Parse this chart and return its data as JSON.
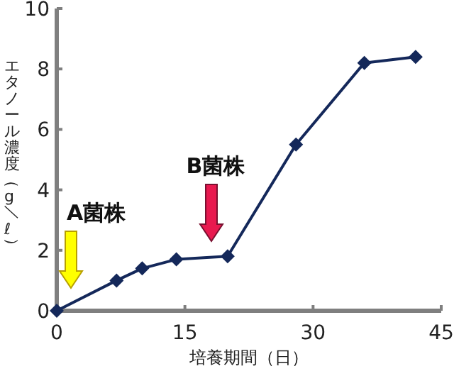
{
  "chart_data": {
    "type": "line",
    "xlabel": "培養期間（日）",
    "ylabel": "エタノール濃度（g／ℓ）",
    "x": [
      0,
      7,
      10,
      14,
      20,
      28,
      36,
      42
    ],
    "series": [
      {
        "color": "#14285a",
        "values": [
          0,
          1.0,
          1.4,
          1.7,
          1.8,
          5.5,
          8.2,
          8.4
        ]
      }
    ],
    "xlim": [
      0,
      45
    ],
    "xticks": [
      0,
      15,
      30,
      45
    ],
    "ylim": [
      0,
      10
    ],
    "yticks": [
      0,
      2,
      4,
      6,
      8,
      10
    ],
    "marker": "diamond",
    "line_style": "solid",
    "grid": false,
    "annotations": [
      "A菌株",
      "B菌株"
    ]
  }
}
